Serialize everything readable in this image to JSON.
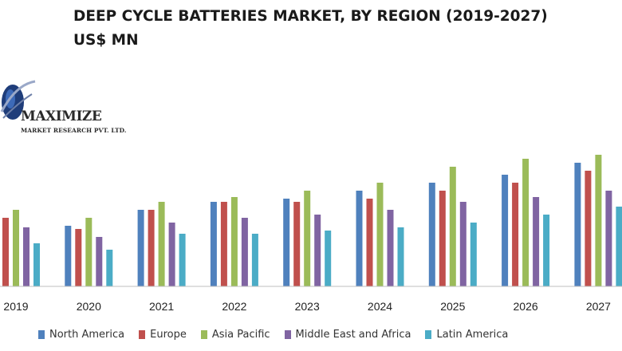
{
  "chart_data": {
    "type": "bar",
    "title_line1": "DEEP CYCLE BATTERIES MARKET, BY REGION (2019-2027)",
    "title_line2": "US$ MN",
    "categories": [
      "2019",
      "2020",
      "2021",
      "2022",
      "2023",
      "2024",
      "2025",
      "2026",
      "2027"
    ],
    "series": [
      {
        "name": "North America",
        "color": "#4f81bd",
        "values": [
          90,
          76,
          96,
          106,
          110,
          120,
          130,
          140,
          155
        ]
      },
      {
        "name": "Europe",
        "color": "#c0504d",
        "values": [
          86,
          72,
          96,
          106,
          106,
          110,
          120,
          130,
          145
        ]
      },
      {
        "name": "Asia Pacific",
        "color": "#9bbb59",
        "values": [
          96,
          86,
          106,
          112,
          120,
          130,
          150,
          160,
          165
        ]
      },
      {
        "name": "Middle East and Africa",
        "color": "#8064a2",
        "values": [
          74,
          62,
          80,
          86,
          90,
          96,
          106,
          112,
          120
        ]
      },
      {
        "name": "Latin America",
        "color": "#4bacc6",
        "values": [
          54,
          46,
          66,
          66,
          70,
          74,
          80,
          90,
          100
        ]
      }
    ],
    "ylim": [
      0,
      200
    ],
    "legend_position": "bottom",
    "grid": false
  },
  "logo": {
    "name": "MAXIMIZE",
    "subtitle": "MARKET RESEARCH PVT. LTD.",
    "icon": "globe-icon"
  }
}
